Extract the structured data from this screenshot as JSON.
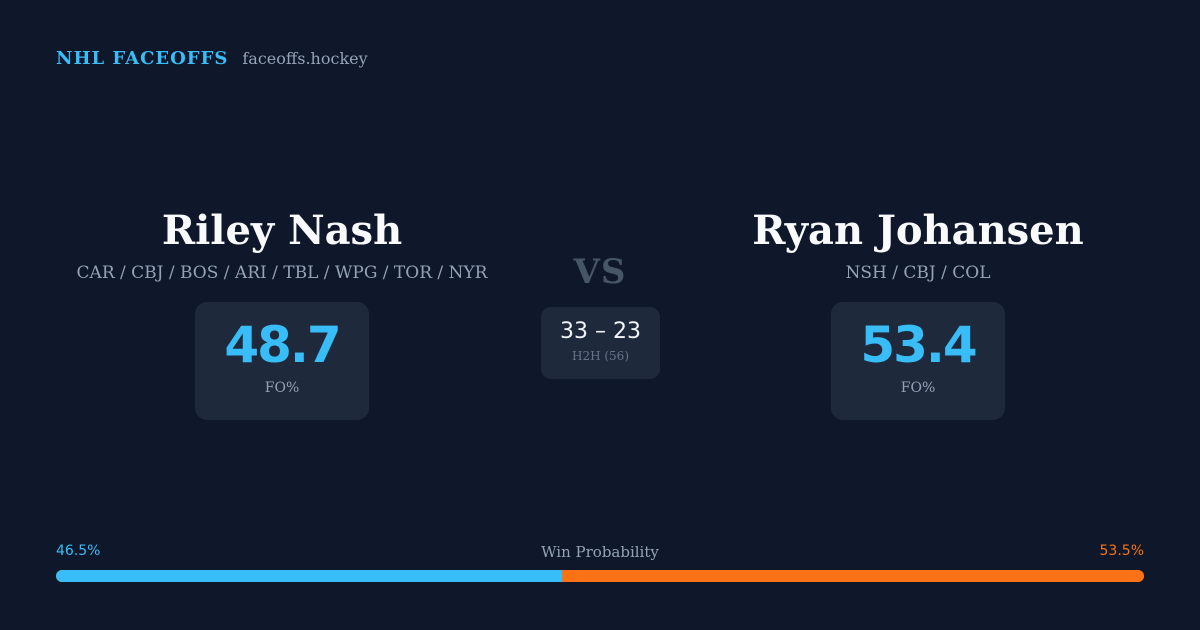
{
  "brand": {
    "title": "NHL FACEOFFS",
    "url": "faceoffs.hockey"
  },
  "players": [
    {
      "name": "Riley Nash",
      "teams": "CAR / CBJ / BOS / ARI / TBL / WPG / TOR / NYR",
      "fo_value": "48.7",
      "fo_label": "FO%"
    },
    {
      "name": "Ryan Johansen",
      "teams": "NSH / CBJ / COL",
      "fo_value": "53.4",
      "fo_label": "FO%"
    }
  ],
  "matchup": {
    "vs_label": "VS",
    "h2h_score": "33 – 23",
    "h2h_label": "H2H (56)"
  },
  "win_probability": {
    "label": "Win Probability",
    "left_text": "46.5%",
    "right_text": "53.5%",
    "left_value": 46.5,
    "right_value": 53.5,
    "left_color": "#38bdf8",
    "right_color": "#f97316"
  },
  "colors": {
    "background": "#0f172a",
    "card": "#1e293b",
    "accent": "#38bdf8",
    "secondary_accent": "#f97316",
    "muted_text": "#94a3b8"
  }
}
